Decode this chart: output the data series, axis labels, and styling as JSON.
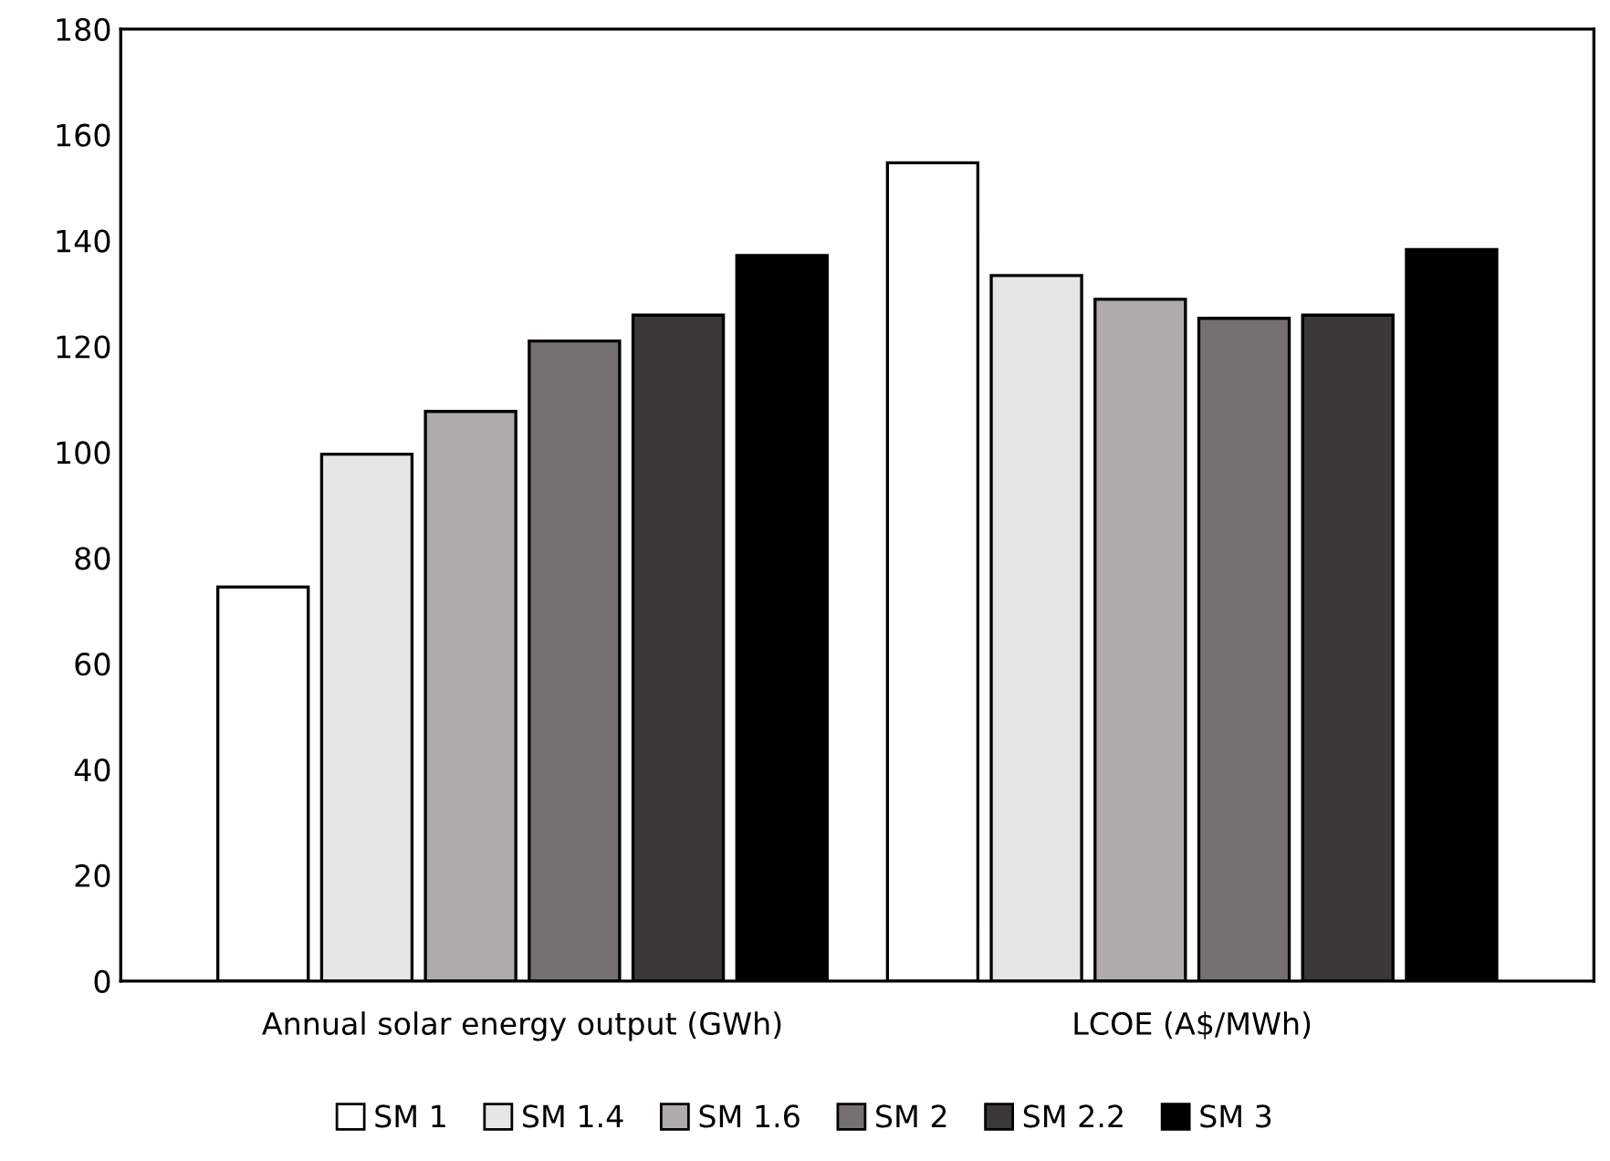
{
  "chart_data": {
    "type": "bar",
    "categories": [
      "Annual solar energy output (GWh)",
      "LCOE (A$/MWh)"
    ],
    "series": [
      {
        "name": "SM 1",
        "color": "#ffffff",
        "values": [
          74.5,
          154.7
        ]
      },
      {
        "name": "SM 1.4",
        "color": "#e6e6e6",
        "values": [
          99.6,
          133.4
        ]
      },
      {
        "name": "SM 1.6",
        "color": "#afabab",
        "values": [
          107.7,
          128.9
        ]
      },
      {
        "name": "SM 2",
        "color": "#767171",
        "values": [
          121.0,
          125.3
        ]
      },
      {
        "name": "SM 2.2",
        "color": "#3b3838",
        "values": [
          125.9,
          125.9
        ]
      },
      {
        "name": "SM 3",
        "color": "#000000",
        "values": [
          137.2,
          138.3
        ]
      }
    ],
    "ylim": [
      0,
      180
    ],
    "yticks": [
      0,
      20,
      40,
      60,
      80,
      100,
      120,
      140,
      160,
      180
    ],
    "grid": false,
    "legend": "bottom"
  }
}
